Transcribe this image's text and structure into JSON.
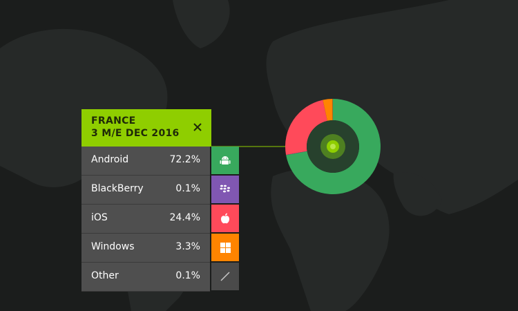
{
  "panel": {
    "title_line1": "FRANCE",
    "title_line2": "3 M/E DEC 2016"
  },
  "colors": {
    "header": "#8fce00",
    "android": "#38a95d",
    "blackberry": "#8057b2",
    "ios": "#ff4a5a",
    "windows": "#ff8400",
    "other": "#4a4a4a"
  },
  "chart_data": {
    "type": "pie",
    "categories": [
      "Android",
      "BlackBerry",
      "iOS",
      "Windows",
      "Other"
    ],
    "values": [
      72.2,
      0.1,
      24.4,
      3.3,
      0.1
    ],
    "labels": [
      "72.2%",
      "0.1%",
      "24.4%",
      "3.3%",
      "0.1%"
    ],
    "icons": [
      "android-icon",
      "blackberry-icon",
      "apple-icon",
      "windows-icon",
      "other-icon"
    ],
    "colors": [
      "#38a95d",
      "#8057b2",
      "#ff4a5a",
      "#ff8400",
      "#4a4a4a"
    ]
  }
}
